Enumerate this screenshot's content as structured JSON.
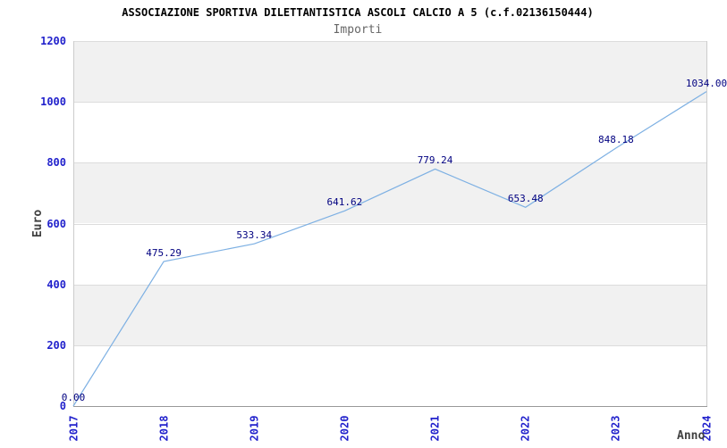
{
  "title": "ASSOCIAZIONE SPORTIVA DILETTANTISTICA ASCOLI CALCIO A 5 (c.f.02136150444)",
  "subtitle": "Importi",
  "chart_data": {
    "type": "line",
    "title": "ASSOCIAZIONE SPORTIVA DILETTANTISTICA ASCOLI CALCIO A 5 (c.f.02136150444)",
    "subtitle": "Importi",
    "xlabel": "Anno",
    "ylabel": "Euro",
    "categories": [
      "2017",
      "2018",
      "2019",
      "2020",
      "2021",
      "2022",
      "2023",
      "2024"
    ],
    "series": [
      {
        "name": "Importi",
        "values": [
          0.0,
          475.29,
          533.34,
          641.62,
          779.24,
          653.48,
          848.18,
          1034.0
        ],
        "point_labels": [
          "0.00",
          "475.29",
          "533.34",
          "641.62",
          "779.24",
          "653.48",
          "848.18",
          "1034.00"
        ]
      }
    ],
    "ylim": [
      0,
      1200
    ],
    "ytick_step": 200,
    "yticks": [
      "0",
      "200",
      "400",
      "600",
      "800",
      "1000",
      "1200"
    ],
    "grid": "horizontal-bands-alternating",
    "legend_position": "none"
  },
  "colors": {
    "line": "#7db0e3",
    "tick_label": "#2222cc",
    "point_label": "#000080",
    "band_gray": "#f1f1f1",
    "band_white": "#ffffff",
    "gridline": "#dcdcdc",
    "axis_line": "#999999",
    "plot_border": "#cccccc",
    "title": "#000000",
    "subtitle": "#666666",
    "axis_title": "#404040"
  }
}
